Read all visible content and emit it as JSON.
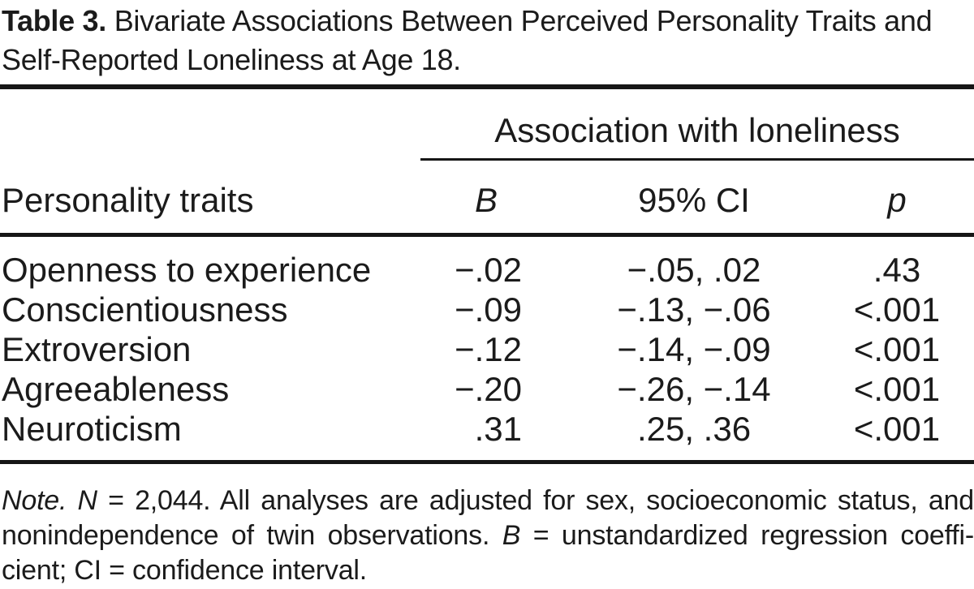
{
  "colors": {
    "text": "#1b1b1b",
    "rule": "#161616",
    "background": "#ffffff"
  },
  "caption": {
    "label": "Table 3.",
    "line1_rest": "Bivariate Associations Between Perceived Personality Traits and",
    "line2": "Self-Reported Loneliness at Age 18."
  },
  "table": {
    "spanner": "Association with loneliness",
    "columns": {
      "trait": "Personality traits",
      "b": "B",
      "ci": "95% CI",
      "p": "p"
    },
    "rows": [
      {
        "trait": "Openness to experience",
        "b": "−.02",
        "ci": "−.05, .02",
        "p": ".43"
      },
      {
        "trait": "Conscientiousness",
        "b": "−.09",
        "ci": "−.13, −.06",
        "p": "<.001"
      },
      {
        "trait": "Extroversion",
        "b": "−.12",
        "ci": "−.14, −.09",
        "p": "<.001"
      },
      {
        "trait": "Agreeableness",
        "b": "−.20",
        "ci": "−.26, −.14",
        "p": "<.001"
      },
      {
        "trait": "Neuroticism",
        "b": ".31",
        "ci": ".25, .36",
        "p": "<.001"
      }
    ]
  },
  "note": {
    "l1_label": "Note. ",
    "l1_n": "N",
    "l1_rest": " = 2,044. All analyses are adjusted for sex, socioeconomic status, and",
    "l2_start": "nonindependence of twin observations. ",
    "l2_b": "B",
    "l2_rest": " = unstandardized regression coeffi-",
    "l3": "cient; CI = confidence interval."
  }
}
